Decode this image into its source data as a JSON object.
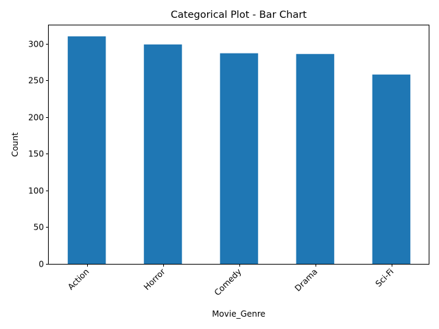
{
  "chart_data": {
    "type": "bar",
    "title": "Categorical Plot - Bar Chart",
    "xlabel": "Movie_Genre",
    "ylabel": "Count",
    "categories": [
      "Action",
      "Horror",
      "Comedy",
      "Drama",
      "Sci-Fi"
    ],
    "values": [
      310,
      299,
      287,
      286,
      258
    ],
    "ylim": [
      0,
      325
    ],
    "yticks": [
      0,
      50,
      100,
      150,
      200,
      250,
      300
    ],
    "bar_color": "#1f77b4",
    "grid": false,
    "legend": "none"
  }
}
